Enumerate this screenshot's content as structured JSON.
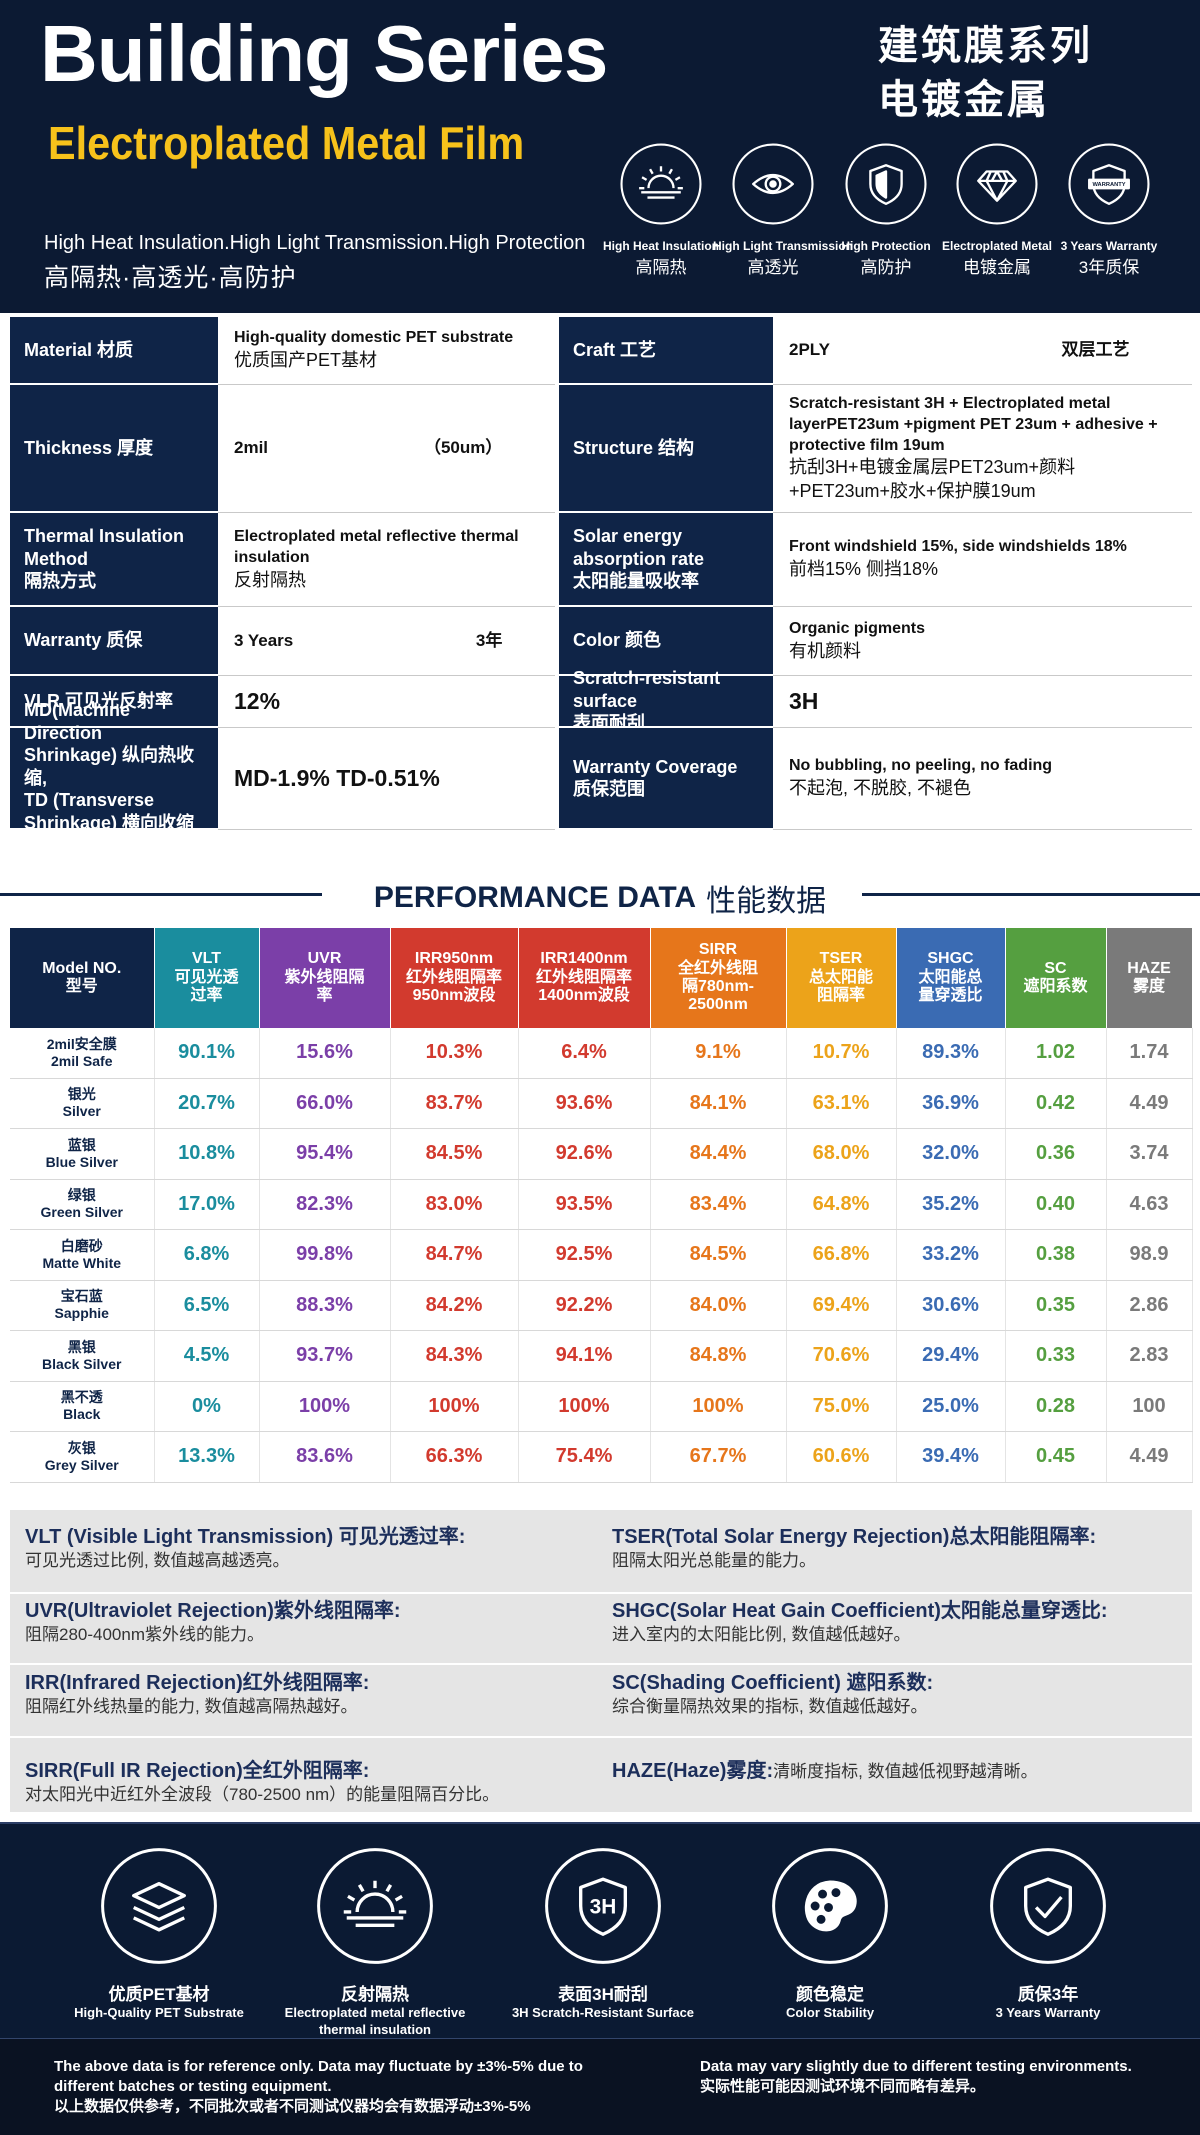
{
  "header": {
    "title": "Building Series",
    "subtitle": "Electroplated Metal Film",
    "cn_title": [
      "建筑膜系列",
      "电镀金属"
    ],
    "tagline_en": "High Heat Insulation.High Light Transmission.High Protection",
    "tagline_cn": "高隔热·高透光·高防护",
    "badges": [
      {
        "en": "High Heat Insulation",
        "cn": "高隔热"
      },
      {
        "en": "High Light Transmission",
        "cn": "高透光"
      },
      {
        "en": "High Protection",
        "cn": "高防护"
      },
      {
        "en": "Electroplated Metal",
        "cn": "电镀金属"
      },
      {
        "en": "3 Years Warranty",
        "cn": "3年质保",
        "icon_text": "WARRANTY"
      }
    ]
  },
  "specs": [
    {
      "left": {
        "label": [
          "Material 材质"
        ],
        "value": [
          "High-quality domestic PET substrate",
          "优质国产PET基材"
        ]
      },
      "right": {
        "label": [
          "Craft   工艺"
        ],
        "value": [
          [
            "2PLY",
            "双层工艺"
          ]
        ]
      }
    },
    {
      "left": {
        "label": [
          "Thickness 厚度"
        ],
        "value": [
          [
            "2mil",
            "（50um）"
          ]
        ]
      },
      "right": {
        "label": [
          "Structure 结构"
        ],
        "value": [
          "Scratch-resistant 3H + Electroplated metal layerPET23um +pigment PET 23um + adhesive + protective film 19um",
          "抗刮3H+电镀金属层PET23um+颜料+PET23um+胶水+保护膜19um"
        ]
      }
    },
    {
      "left": {
        "label": [
          "Thermal Insulation",
          "Method",
          "隔热方式"
        ],
        "value": [
          "Electroplated metal reflective thermal insulation",
          "反射隔热"
        ]
      },
      "right": {
        "label": [
          "Solar energy",
          "absorption rate",
          "太阳能量吸收率"
        ],
        "value": [
          "Front windshield 15%, side windshields 18%",
          "前档15%   侧挡18%"
        ]
      }
    },
    {
      "left": {
        "label": [
          "Warranty 质保"
        ],
        "value": [
          [
            "3 Years",
            "3年"
          ]
        ]
      },
      "right": {
        "label": [
          "Color 颜色"
        ],
        "value": [
          "Organic pigments",
          "有机颜料"
        ]
      }
    },
    {
      "left": {
        "label": [
          "VLR 可见光反射率"
        ],
        "value": [
          "12%"
        ]
      },
      "right": {
        "label": [
          "Scratch-resistant surface",
          "表面耐刮"
        ],
        "value": [
          "3H"
        ]
      }
    },
    {
      "left": {
        "label": [
          "MD(Machine Direction",
          "Shrinkage) 纵向热收缩,",
          "TD (Transverse",
          "Shrinkage) 横向收缩率"
        ],
        "value": [
          "MD-1.9%   TD-0.51%"
        ]
      },
      "right": {
        "label": [
          "Warranty Coverage",
          "质保范围"
        ],
        "value": [
          "No bubbling, no peeling, no fading",
          "不起泡, 不脱胶, 不褪色"
        ]
      }
    }
  ],
  "performance": {
    "title": "PERFORMANCE DATA",
    "title_cn": "性能数据",
    "columns": [
      {
        "name": [
          "Model NO.",
          "型号"
        ],
        "color": "#0f2447"
      },
      {
        "name": [
          "VLT",
          "可见光透",
          "过率"
        ],
        "color": "#1a8d9e"
      },
      {
        "name": [
          "UVR",
          "紫外线阻隔",
          "率"
        ],
        "color": "#7b3fa8"
      },
      {
        "name": [
          "IRR950nm",
          "红外线阻隔率",
          "950nm波段"
        ],
        "color": "#d23a2e"
      },
      {
        "name": [
          "IRR1400nm",
          "红外线阻隔率",
          "1400nm波段"
        ],
        "color": "#d23a2e"
      },
      {
        "name": [
          "SIRR",
          "全红外线阻",
          "隔780nm-",
          "2500nm"
        ],
        "color": "#e6761b"
      },
      {
        "name": [
          "TSER",
          "总太阳能",
          "阻隔率"
        ],
        "color": "#eca31a"
      },
      {
        "name": [
          "SHGC",
          "太阳能总",
          "量穿透比"
        ],
        "color": "#3a6bb3"
      },
      {
        "name": [
          "SC",
          "遮阳系数"
        ],
        "color": "#559f40"
      },
      {
        "name": [
          "HAZE",
          "雾度"
        ],
        "color": "#7a7a7a"
      }
    ],
    "rows": [
      {
        "model": [
          "2mil安全膜",
          "2mil Safe"
        ],
        "values": [
          "90.1%",
          "15.6%",
          "10.3%",
          "6.4%",
          "9.1%",
          "10.7%",
          "89.3%",
          "1.02",
          "1.74"
        ]
      },
      {
        "model": [
          "银光",
          "Silver"
        ],
        "values": [
          "20.7%",
          "66.0%",
          "83.7%",
          "93.6%",
          "84.1%",
          "63.1%",
          "36.9%",
          "0.42",
          "4.49"
        ]
      },
      {
        "model": [
          "蓝银",
          "Blue Silver"
        ],
        "values": [
          "10.8%",
          "95.4%",
          "84.5%",
          "92.6%",
          "84.4%",
          "68.0%",
          "32.0%",
          "0.36",
          "3.74"
        ]
      },
      {
        "model": [
          "绿银",
          "Green Silver"
        ],
        "values": [
          "17.0%",
          "82.3%",
          "83.0%",
          "93.5%",
          "83.4%",
          "64.8%",
          "35.2%",
          "0.40",
          "4.63"
        ]
      },
      {
        "model": [
          "白磨砂",
          "Matte White"
        ],
        "values": [
          "6.8%",
          "99.8%",
          "84.7%",
          "92.5%",
          "84.5%",
          "66.8%",
          "33.2%",
          "0.38",
          "98.9"
        ]
      },
      {
        "model": [
          "宝石蓝",
          "Sapphie"
        ],
        "values": [
          "6.5%",
          "88.3%",
          "84.2%",
          "92.2%",
          "84.0%",
          "69.4%",
          "30.6%",
          "0.35",
          "2.86"
        ]
      },
      {
        "model": [
          "黑银",
          "Black Silver"
        ],
        "values": [
          "4.5%",
          "93.7%",
          "84.3%",
          "94.1%",
          "84.8%",
          "70.6%",
          "29.4%",
          "0.33",
          "2.83"
        ]
      },
      {
        "model": [
          "黑不透",
          "Black"
        ],
        "values": [
          "0%",
          "100%",
          "100%",
          "100%",
          "100%",
          "75.0%",
          "25.0%",
          "0.28",
          "100"
        ]
      },
      {
        "model": [
          "灰银",
          "Grey Silver"
        ],
        "values": [
          "13.3%",
          "83.6%",
          "66.3%",
          "75.4%",
          "67.7%",
          "60.6%",
          "39.4%",
          "0.45",
          "4.49"
        ]
      }
    ]
  },
  "definitions": [
    {
      "term": "VLT (Visible Light Transmission) 可见光透过率:",
      "desc": "可见光透过比例, 数值越高越透亮。"
    },
    {
      "term": "TSER(Total Solar Energy Rejection)总太阳能阻隔率:",
      "desc": "阻隔太阳光总能量的能力。"
    },
    {
      "term": "UVR(Ultraviolet Rejection)紫外线阻隔率:",
      "desc": "阻隔280-400nm紫外线的能力。"
    },
    {
      "term": "SHGC(Solar Heat Gain Coefficient)太阳能总量穿透比:",
      "desc": "进入室内的太阳能比例, 数值越低越好。"
    },
    {
      "term": "IRR(Infrared Rejection)红外线阻隔率:",
      "desc": "阻隔红外线热量的能力, 数值越高隔热越好。"
    },
    {
      "term": "SC(Shading Coefficient) 遮阳系数:",
      "desc": "综合衡量隔热效果的指标, 数值越低越好。"
    },
    {
      "term": "SIRR(Full IR Rejection)全红外阻隔率:",
      "desc": "对太阳光中近红外全波段（780-2500 nm）的能量阻隔百分比。"
    },
    {
      "term": "HAZE(Haze)雾度:",
      "desc": "清晰度指标, 数值越低视野越清晰。"
    }
  ],
  "features": [
    {
      "cn": "优质PET基材",
      "en": "High-Quality PET Substrate"
    },
    {
      "cn": "反射隔热",
      "en": "Electroplated metal reflective thermal insulation"
    },
    {
      "cn": "表面3H耐刮",
      "en": "3H Scratch-Resistant Surface",
      "icon_text": "3H"
    },
    {
      "cn": "颜色稳定",
      "en": "Color Stability"
    },
    {
      "cn": "质保3年",
      "en": "3 Years Warranty"
    }
  ],
  "footer": {
    "left": [
      "The above data is for reference only. Data may fluctuate by ±3%-5% due to",
      "different batches or testing equipment.",
      "以上数据仅供参考，不同批次或者不同测试仪器均会有数据浮动±3%-5%"
    ],
    "right": [
      "Data may vary slightly due to different testing environments.",
      "实际性能可能因测试环境不同而略有差异。"
    ]
  }
}
